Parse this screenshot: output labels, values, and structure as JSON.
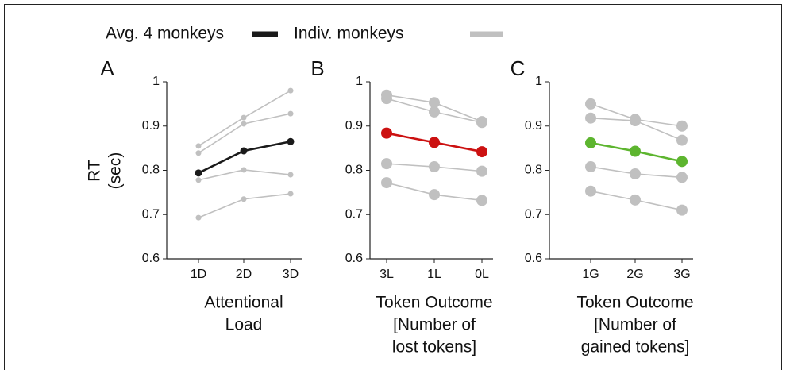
{
  "legend": [
    {
      "label": "Avg. 4 monkeys",
      "color": "#1a1a1a"
    },
    {
      "label": "Indiv. monkeys",
      "color": "#c0c0c0"
    }
  ],
  "chart_data": [
    {
      "type": "line",
      "panel": "A",
      "ylabel": [
        "RT",
        "(sec)"
      ],
      "xlabel": [
        "Attentional",
        "Load"
      ],
      "marker": "small",
      "categories": [
        "1D",
        "2D",
        "3D"
      ],
      "ylim": [
        0.6,
        1
      ],
      "yticks": [
        0.6,
        0.7,
        0.8,
        0.9,
        1
      ],
      "series": [
        {
          "color": "#1a1a1a",
          "values": [
            0.794,
            0.844,
            0.865
          ]
        },
        {
          "color": "#c0c0c0",
          "values": [
            0.855,
            0.919,
            0.98
          ]
        },
        {
          "color": "#c0c0c0",
          "values": [
            0.839,
            0.905,
            0.928
          ]
        },
        {
          "color": "#c0c0c0",
          "values": [
            0.778,
            0.801,
            0.79
          ]
        },
        {
          "color": "#c0c0c0",
          "values": [
            0.693,
            0.735,
            0.747
          ]
        }
      ]
    },
    {
      "type": "line",
      "panel": "B",
      "xlabel": [
        "Token Outcome",
        "[Number of",
        "lost tokens]"
      ],
      "marker": "large",
      "categories": [
        "3L",
        "1L",
        "0L"
      ],
      "ylim": [
        0.6,
        1
      ],
      "yticks": [
        0.6,
        0.7,
        0.8,
        0.9,
        1
      ],
      "series": [
        {
          "color": "#cc1111",
          "values": [
            0.884,
            0.863,
            0.842
          ]
        },
        {
          "color": "#c0c0c0",
          "values": [
            0.97,
            0.953,
            0.91
          ]
        },
        {
          "color": "#c0c0c0",
          "values": [
            0.962,
            0.932,
            0.908
          ]
        },
        {
          "color": "#c0c0c0",
          "values": [
            0.815,
            0.808,
            0.798
          ]
        },
        {
          "color": "#c0c0c0",
          "values": [
            0.772,
            0.745,
            0.732
          ]
        }
      ]
    },
    {
      "type": "line",
      "panel": "C",
      "xlabel": [
        "Token Outcome",
        "[Number of",
        "gained tokens]"
      ],
      "marker": "large",
      "categories": [
        "1G",
        "2G",
        "3G"
      ],
      "ylim": [
        0.6,
        1
      ],
      "yticks": [
        0.6,
        0.7,
        0.8,
        0.9,
        1
      ],
      "series": [
        {
          "color": "#5db52f",
          "values": [
            0.862,
            0.843,
            0.82
          ]
        },
        {
          "color": "#c0c0c0",
          "values": [
            0.95,
            0.915,
            0.9
          ]
        },
        {
          "color": "#c0c0c0",
          "values": [
            0.918,
            0.912,
            0.868
          ]
        },
        {
          "color": "#c0c0c0",
          "values": [
            0.808,
            0.792,
            0.784
          ]
        },
        {
          "color": "#c0c0c0",
          "values": [
            0.753,
            0.733,
            0.71
          ]
        }
      ]
    }
  ]
}
